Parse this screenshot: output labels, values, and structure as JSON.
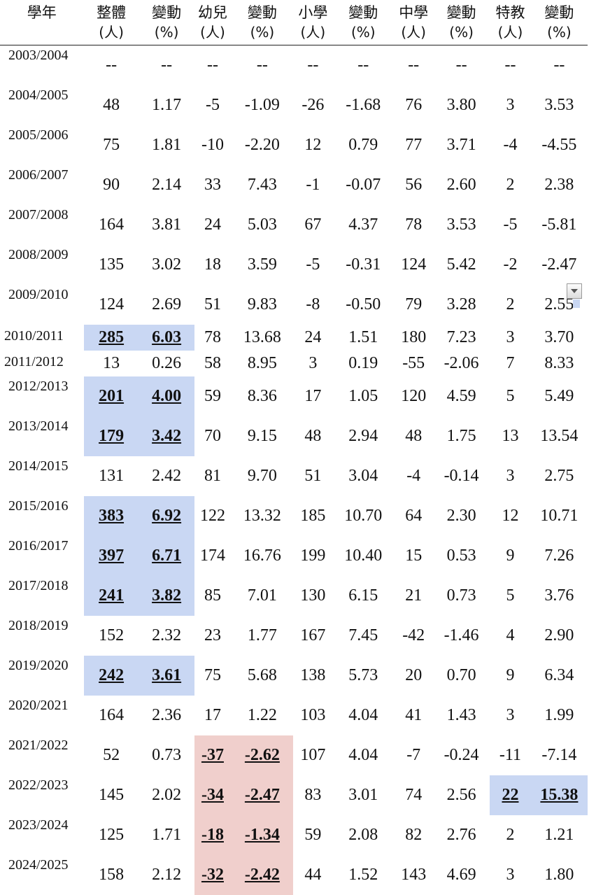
{
  "headers": {
    "year": "學年",
    "total": [
      "整體",
      "(人)"
    ],
    "total_pct": [
      "變動",
      "(%)"
    ],
    "kinder": [
      "幼兒",
      "(人)"
    ],
    "kinder_pct": [
      "變動",
      "(%)"
    ],
    "primary": [
      "小學",
      "(人)"
    ],
    "primary_pct": [
      "變動",
      "(%)"
    ],
    "secondary": [
      "中學",
      "(人)"
    ],
    "secondary_pct": [
      "變動",
      "(%)"
    ],
    "special": [
      "特教",
      "(人)"
    ],
    "special_pct": [
      "變動",
      "(%)"
    ]
  },
  "rows": [
    {
      "year": "2003/2004",
      "v": [
        "--",
        "--",
        "--",
        "--",
        "--",
        "--",
        "--",
        "--",
        "--",
        "--"
      ]
    },
    {
      "year": "2004/2005",
      "v": [
        "48",
        "1.17",
        "-5",
        "-1.09",
        "-26",
        "-1.68",
        "76",
        "3.80",
        "3",
        "3.53"
      ]
    },
    {
      "year": "2005/2006",
      "v": [
        "75",
        "1.81",
        "-10",
        "-2.20",
        "12",
        "0.79",
        "77",
        "3.71",
        "-4",
        "-4.55"
      ]
    },
    {
      "year": "2006/2007",
      "v": [
        "90",
        "2.14",
        "33",
        "7.43",
        "-1",
        "-0.07",
        "56",
        "2.60",
        "2",
        "2.38"
      ]
    },
    {
      "year": "2007/2008",
      "v": [
        "164",
        "3.81",
        "24",
        "5.03",
        "67",
        "4.37",
        "78",
        "3.53",
        "-5",
        "-5.81"
      ]
    },
    {
      "year": "2008/2009",
      "v": [
        "135",
        "3.02",
        "18",
        "3.59",
        "-5",
        "-0.31",
        "124",
        "5.42",
        "-2",
        "-2.47"
      ]
    },
    {
      "year": "2009/2010",
      "v": [
        "124",
        "2.69",
        "51",
        "9.83",
        "-8",
        "-0.50",
        "79",
        "3.28",
        "2",
        "2.55"
      ]
    },
    {
      "year": "2010/2011",
      "v": [
        "285",
        "6.03",
        "78",
        "13.68",
        "24",
        "1.51",
        "180",
        "7.23",
        "3",
        "3.70"
      ]
    },
    {
      "year": "2011/2012",
      "v": [
        "13",
        "0.26",
        "58",
        "8.95",
        "3",
        "0.19",
        "-55",
        "-2.06",
        "7",
        "8.33"
      ]
    },
    {
      "year": "2012/2013",
      "v": [
        "201",
        "4.00",
        "59",
        "8.36",
        "17",
        "1.05",
        "120",
        "4.59",
        "5",
        "5.49"
      ]
    },
    {
      "year": "2013/2014",
      "v": [
        "179",
        "3.42",
        "70",
        "9.15",
        "48",
        "2.94",
        "48",
        "1.75",
        "13",
        "13.54"
      ]
    },
    {
      "year": "2014/2015",
      "v": [
        "131",
        "2.42",
        "81",
        "9.70",
        "51",
        "3.04",
        "-4",
        "-0.14",
        "3",
        "2.75"
      ]
    },
    {
      "year": "2015/2016",
      "v": [
        "383",
        "6.92",
        "122",
        "13.32",
        "185",
        "10.70",
        "64",
        "2.30",
        "12",
        "10.71"
      ]
    },
    {
      "year": "2016/2017",
      "v": [
        "397",
        "6.71",
        "174",
        "16.76",
        "199",
        "10.40",
        "15",
        "0.53",
        "9",
        "7.26"
      ]
    },
    {
      "year": "2017/2018",
      "v": [
        "241",
        "3.82",
        "85",
        "7.01",
        "130",
        "6.15",
        "21",
        "0.73",
        "5",
        "3.76"
      ]
    },
    {
      "year": "2018/2019",
      "v": [
        "152",
        "2.32",
        "23",
        "1.77",
        "167",
        "7.45",
        "-42",
        "-1.46",
        "4",
        "2.90"
      ]
    },
    {
      "year": "2019/2020",
      "v": [
        "242",
        "3.61",
        "75",
        "5.68",
        "138",
        "5.73",
        "20",
        "0.70",
        "9",
        "6.34"
      ]
    },
    {
      "year": "2020/2021",
      "v": [
        "164",
        "2.36",
        "17",
        "1.22",
        "103",
        "4.04",
        "41",
        "1.43",
        "3",
        "1.99"
      ]
    },
    {
      "year": "2021/2022",
      "v": [
        "52",
        "0.73",
        "-37",
        "-2.62",
        "107",
        "4.04",
        "-7",
        "-0.24",
        "-11",
        "-7.14"
      ]
    },
    {
      "year": "2022/2023",
      "v": [
        "145",
        "2.02",
        "-34",
        "-2.47",
        "83",
        "3.01",
        "74",
        "2.56",
        "22",
        "15.38"
      ]
    },
    {
      "year": "2023/2024",
      "v": [
        "125",
        "1.71",
        "-18",
        "-1.34",
        "59",
        "2.08",
        "82",
        "2.76",
        "2",
        "1.21"
      ]
    },
    {
      "year": "2024/2025",
      "v": [
        "158",
        "2.12",
        "-32",
        "-2.42",
        "44",
        "1.52",
        "143",
        "4.69",
        "3",
        "1.80"
      ]
    }
  ],
  "highlight_colors": {
    "blue": "#c9d7f3",
    "red": "#f0cfcc"
  },
  "filter_icon": "dropdown-filter-icon"
}
